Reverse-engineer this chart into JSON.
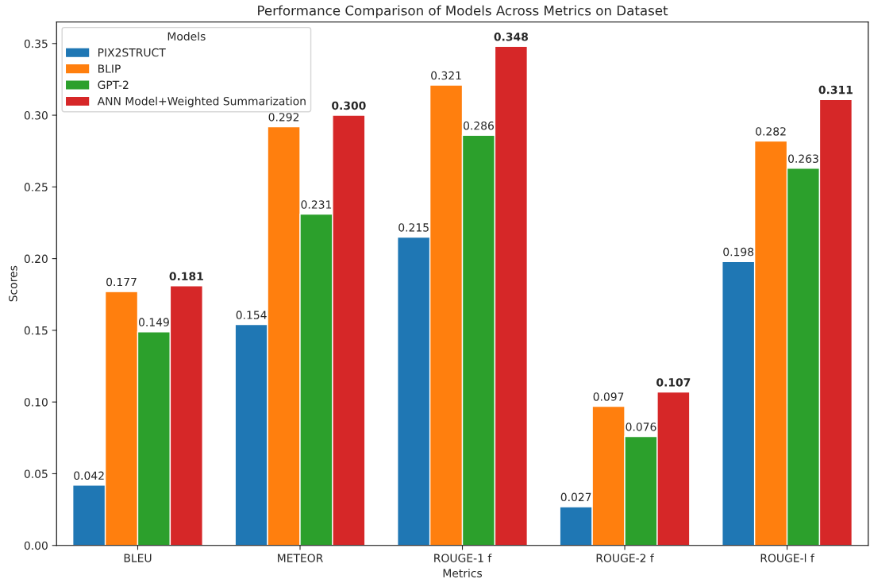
{
  "chart_data": {
    "type": "bar",
    "title": "Performance Comparison of Models Across Metrics on Dataset",
    "xlabel": "Metrics",
    "ylabel": "Scores",
    "legend_title": "Models",
    "categories": [
      "BLEU",
      "METEOR",
      "ROUGE-1 f",
      "ROUGE-2 f",
      "ROUGE-l f"
    ],
    "series": [
      {
        "name": "PIX2STRUCT",
        "color": "#1f77b4",
        "values": [
          0.042,
          0.154,
          0.215,
          0.027,
          0.198
        ],
        "value_labels": [
          "0.042",
          "0.154",
          "0.215",
          "0.027",
          "0.198"
        ]
      },
      {
        "name": "BLIP",
        "color": "#ff7f0e",
        "values": [
          0.177,
          0.292,
          0.321,
          0.097,
          0.282
        ],
        "value_labels": [
          "0.177",
          "0.292",
          "0.321",
          "0.097",
          "0.282"
        ]
      },
      {
        "name": "GPT-2",
        "color": "#2ca02c",
        "values": [
          0.149,
          0.231,
          0.286,
          0.076,
          0.263
        ],
        "value_labels": [
          "0.149",
          "0.231",
          "0.286",
          "0.076",
          "0.263"
        ]
      },
      {
        "name": "ANN Model+Weighted Summarization",
        "color": "#d62728",
        "values": [
          0.181,
          0.3,
          0.348,
          0.107,
          0.311
        ],
        "value_labels": [
          "0.181",
          "0.300",
          "0.348",
          "0.107",
          "0.311"
        ]
      }
    ],
    "ylim": [
      0,
      0.365
    ],
    "yticks": [
      {
        "value": 0,
        "label": "0.00"
      },
      {
        "value": 0.05,
        "label": "0.05"
      },
      {
        "value": 0.1,
        "label": "0.10"
      },
      {
        "value": 0.15,
        "label": "0.15"
      },
      {
        "value": 0.2,
        "label": "0.20"
      },
      {
        "value": 0.25,
        "label": "0.25"
      },
      {
        "value": 0.3,
        "label": "0.30"
      },
      {
        "value": 0.35,
        "label": "0.35"
      }
    ],
    "grid": false,
    "legend": "top left"
  }
}
